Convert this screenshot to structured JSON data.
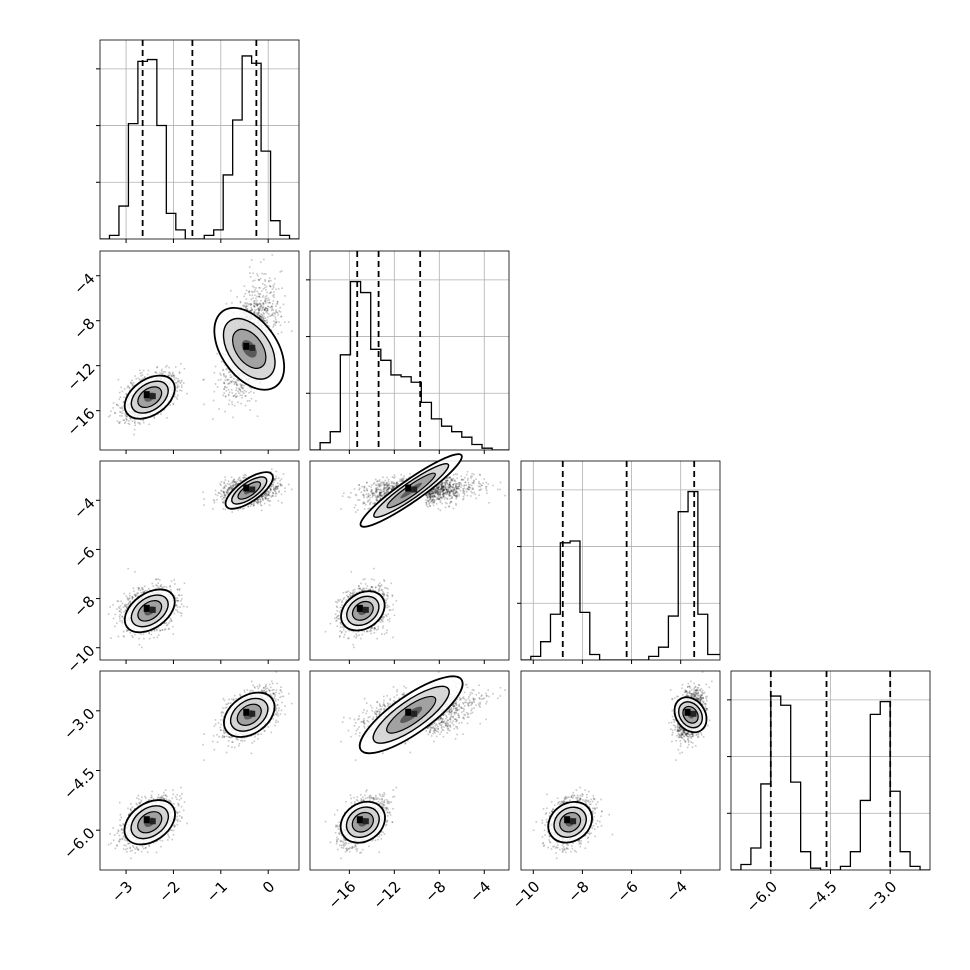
{
  "chart_data": {
    "type": "corner",
    "title": "",
    "grid": true,
    "params": [
      {
        "range": [
          -3.55,
          0.65
        ],
        "ticks": [
          -3,
          -2,
          -1,
          0
        ],
        "tick_labels": [
          "−3",
          "−2",
          "−1",
          "0"
        ],
        "quantiles": [
          -2.65,
          -1.6,
          -0.25
        ],
        "modes": [
          {
            "mean": -2.5,
            "sd": 0.28,
            "weight": 0.5
          },
          {
            "mean": -0.4,
            "sd": 0.28,
            "weight": 0.5
          }
        ]
      },
      {
        "range": [
          -19.5,
          -1.8
        ],
        "ticks": [
          -16,
          -12,
          -8,
          -4
        ],
        "tick_labels": [
          "−16",
          "−12",
          "−8",
          "−4"
        ],
        "quantiles": [
          -15.3,
          -13.4,
          -9.7
        ],
        "modes": [
          {
            "mean": -14.8,
            "sd": 1.0,
            "weight": 0.5
          },
          {
            "mean": -10.5,
            "sd": 2.6,
            "weight": 0.5
          }
        ]
      },
      {
        "range": [
          -10.5,
          -2.4
        ],
        "ticks": [
          -10,
          -8,
          -6,
          -4
        ],
        "tick_labels": [
          "−10",
          "−8",
          "−6",
          "−4"
        ],
        "quantiles": [
          -8.8,
          -6.2,
          -3.45
        ],
        "modes": [
          {
            "mean": -8.5,
            "sd": 0.45,
            "weight": 0.5
          },
          {
            "mean": -3.6,
            "sd": 0.28,
            "weight": 0.5
          }
        ]
      },
      {
        "range": [
          -7.0,
          -2.0
        ],
        "ticks": [
          -6.0,
          -4.5,
          -3.0
        ],
        "tick_labels": [
          "−6.0",
          "−4.5",
          "−3.0"
        ],
        "quantiles": [
          -6.0,
          -4.6,
          -3.0
        ],
        "modes": [
          {
            "mean": -5.8,
            "sd": 0.3,
            "weight": 0.5
          },
          {
            "mean": -3.1,
            "sd": 0.3,
            "weight": 0.5
          }
        ]
      }
    ],
    "y_tick_labels": {
      "1": [
        "−4",
        "−8",
        "−12",
        "−16"
      ],
      "2": [
        "−4",
        "−6",
        "−8",
        "−10"
      ],
      "3": [
        "−3.0",
        "−4.5",
        "−6.0"
      ]
    },
    "y_ticks": {
      "1": [
        -4,
        -8,
        -12,
        -16
      ],
      "2": [
        -4,
        -6,
        -8,
        -10
      ],
      "3": [
        -3.0,
        -4.5,
        -6.0
      ]
    },
    "histograms": [
      {
        "param": 0,
        "bin_edges": [
          -3.55,
          -3.35,
          -3.15,
          -2.95,
          -2.75,
          -2.55,
          -2.35,
          -2.15,
          -1.95,
          -1.75,
          -1.55,
          -1.35,
          -1.15,
          -0.95,
          -0.75,
          -0.55,
          -0.35,
          -0.15,
          0.05,
          0.25,
          0.45,
          0.65
        ],
        "counts": [
          0,
          0.02,
          0.18,
          0.63,
          0.97,
          0.98,
          0.62,
          0.14,
          0.05,
          0,
          0,
          0.02,
          0.05,
          0.35,
          0.65,
          1.0,
          0.96,
          0.48,
          0.1,
          0.02,
          0
        ]
      },
      {
        "param": 1,
        "bin_edges": [
          -19.5,
          -18.6,
          -17.7,
          -16.8,
          -15.9,
          -15.0,
          -14.1,
          -13.2,
          -12.3,
          -11.4,
          -10.5,
          -9.6,
          -8.7,
          -7.8,
          -6.9,
          -6.0,
          -5.1,
          -4.2,
          -3.3,
          -2.4,
          -1.8
        ],
        "counts": [
          0,
          0.04,
          0.1,
          0.52,
          0.92,
          0.86,
          0.55,
          0.49,
          0.41,
          0.4,
          0.37,
          0.26,
          0.17,
          0.13,
          0.1,
          0.07,
          0.03,
          0.01,
          0,
          0
        ]
      },
      {
        "param": 2,
        "bin_edges": [
          -10.5,
          -10.1,
          -9.7,
          -9.3,
          -8.9,
          -8.5,
          -8.1,
          -7.7,
          -7.3,
          -6.9,
          -6.5,
          -6.1,
          -5.7,
          -5.3,
          -4.9,
          -4.5,
          -4.1,
          -3.7,
          -3.3,
          -2.9,
          -2.4
        ],
        "counts": [
          0,
          0.02,
          0.1,
          0.25,
          0.64,
          0.65,
          0.26,
          0.03,
          0,
          0,
          0,
          0,
          0,
          0.02,
          0.07,
          0.24,
          0.81,
          0.92,
          0.25,
          0.03
        ]
      },
      {
        "param": 3,
        "bin_edges": [
          -7.0,
          -6.75,
          -6.5,
          -6.25,
          -6.0,
          -5.75,
          -5.5,
          -5.25,
          -5.0,
          -4.75,
          -4.5,
          -4.25,
          -4.0,
          -3.75,
          -3.5,
          -3.25,
          -3.0,
          -2.75,
          -2.5,
          -2.25,
          -2.0
        ],
        "counts": [
          0,
          0.03,
          0.12,
          0.47,
          0.95,
          0.9,
          0.48,
          0.1,
          0.01,
          0,
          0,
          0.02,
          0.1,
          0.38,
          0.85,
          0.92,
          0.43,
          0.1,
          0.02,
          0
        ]
      }
    ]
  }
}
